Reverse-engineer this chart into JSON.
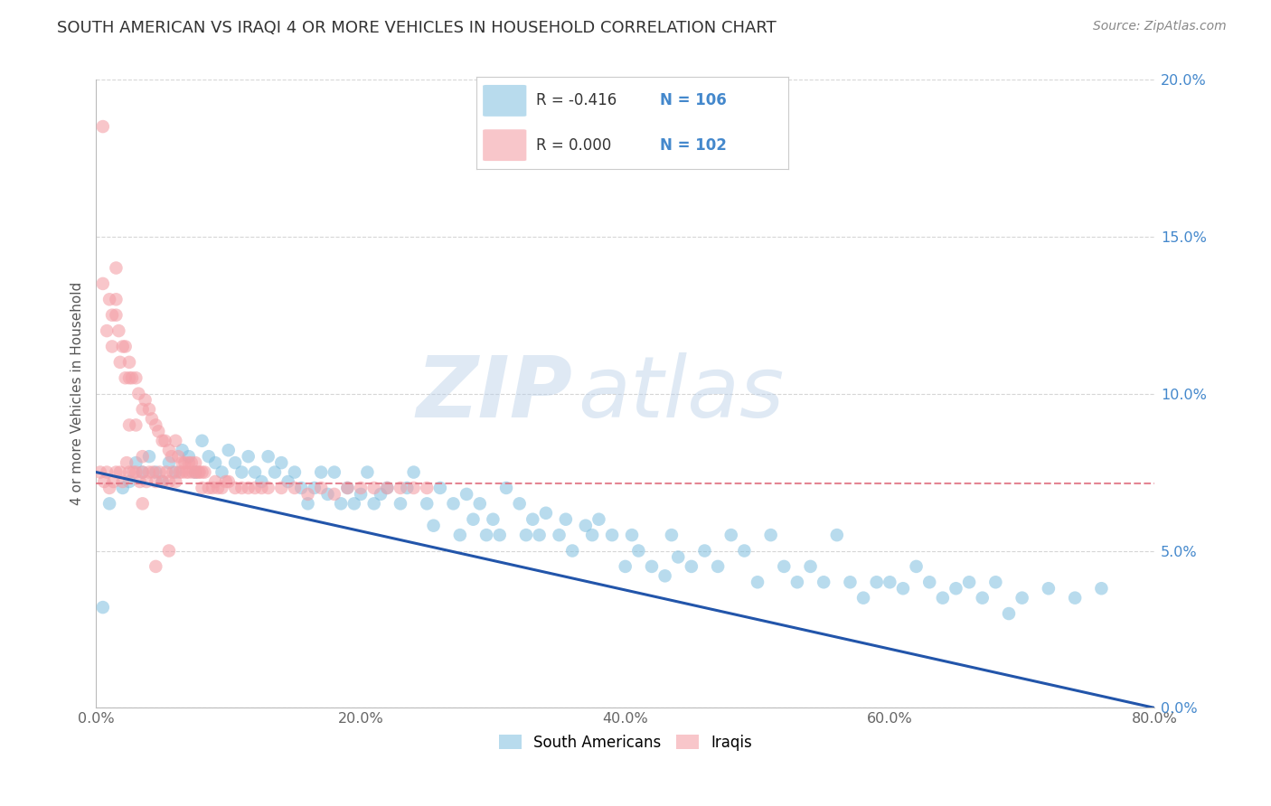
{
  "title": "SOUTH AMERICAN VS IRAQI 4 OR MORE VEHICLES IN HOUSEHOLD CORRELATION CHART",
  "source": "Source: ZipAtlas.com",
  "ylabel": "4 or more Vehicles in Household",
  "xlim": [
    0,
    0.8
  ],
  "ylim": [
    0,
    0.2
  ],
  "xticks": [
    0.0,
    0.2,
    0.4,
    0.6,
    0.8
  ],
  "yticks": [
    0.0,
    0.05,
    0.1,
    0.15,
    0.2
  ],
  "ytick_labels_right": [
    "0.0%",
    "5.0%",
    "10.0%",
    "15.0%",
    "20.0%"
  ],
  "xtick_labels": [
    "0.0%",
    "20.0%",
    "40.0%",
    "60.0%",
    "80.0%"
  ],
  "legend_blue_R": "R = -0.416",
  "legend_blue_N": "N = 106",
  "legend_pink_R": "R = 0.000",
  "legend_pink_N": "N = 102",
  "blue_color": "#7fbfdf",
  "pink_color": "#f4a0a8",
  "blue_line_color": "#2255aa",
  "pink_line_color": "#e07080",
  "watermark_zip": "ZIP",
  "watermark_atlas": "atlas",
  "blue_trend_start_y": 0.075,
  "blue_trend_end_y": 0.0,
  "pink_trend_y": 0.0715,
  "blue_scatter_x": [
    0.5,
    1.0,
    2.0,
    2.5,
    3.0,
    3.5,
    4.0,
    4.5,
    5.0,
    5.5,
    6.0,
    6.5,
    7.0,
    7.5,
    8.0,
    8.5,
    9.0,
    9.5,
    10.0,
    10.5,
    11.0,
    11.5,
    12.0,
    12.5,
    13.0,
    13.5,
    14.0,
    14.5,
    15.0,
    15.5,
    16.0,
    16.5,
    17.0,
    17.5,
    18.0,
    18.5,
    19.0,
    19.5,
    20.0,
    20.5,
    21.0,
    21.5,
    22.0,
    23.0,
    23.5,
    24.0,
    25.0,
    25.5,
    26.0,
    27.0,
    27.5,
    28.0,
    28.5,
    29.0,
    29.5,
    30.0,
    30.5,
    31.0,
    32.0,
    32.5,
    33.0,
    33.5,
    34.0,
    35.0,
    35.5,
    36.0,
    37.0,
    37.5,
    38.0,
    39.0,
    40.0,
    40.5,
    41.0,
    42.0,
    43.0,
    43.5,
    44.0,
    45.0,
    46.0,
    47.0,
    48.0,
    49.0,
    50.0,
    51.0,
    52.0,
    53.0,
    54.0,
    55.0,
    56.0,
    57.0,
    58.0,
    59.0,
    60.0,
    61.0,
    62.0,
    63.0,
    64.0,
    65.0,
    66.0,
    67.0,
    68.0,
    69.0,
    70.0,
    72.0,
    74.0,
    76.0
  ],
  "blue_scatter_y": [
    3.2,
    6.5,
    7.0,
    7.2,
    7.8,
    7.5,
    8.0,
    7.5,
    7.2,
    7.8,
    7.5,
    8.2,
    8.0,
    7.5,
    8.5,
    8.0,
    7.8,
    7.5,
    8.2,
    7.8,
    7.5,
    8.0,
    7.5,
    7.2,
    8.0,
    7.5,
    7.8,
    7.2,
    7.5,
    7.0,
    6.5,
    7.0,
    7.5,
    6.8,
    7.5,
    6.5,
    7.0,
    6.5,
    6.8,
    7.5,
    6.5,
    6.8,
    7.0,
    6.5,
    7.0,
    7.5,
    6.5,
    5.8,
    7.0,
    6.5,
    5.5,
    6.8,
    6.0,
    6.5,
    5.5,
    6.0,
    5.5,
    7.0,
    6.5,
    5.5,
    6.0,
    5.5,
    6.2,
    5.5,
    6.0,
    5.0,
    5.8,
    5.5,
    6.0,
    5.5,
    4.5,
    5.5,
    5.0,
    4.5,
    4.2,
    5.5,
    4.8,
    4.5,
    5.0,
    4.5,
    5.5,
    5.0,
    4.0,
    5.5,
    4.5,
    4.0,
    4.5,
    4.0,
    5.5,
    4.0,
    3.5,
    4.0,
    4.0,
    3.8,
    4.5,
    4.0,
    3.5,
    3.8,
    4.0,
    3.5,
    4.0,
    3.0,
    3.5,
    3.8,
    3.5,
    3.8
  ],
  "pink_scatter_x": [
    0.3,
    0.5,
    0.6,
    0.8,
    1.0,
    1.0,
    1.2,
    1.3,
    1.5,
    1.5,
    1.7,
    1.8,
    2.0,
    2.0,
    2.2,
    2.3,
    2.5,
    2.5,
    2.7,
    2.8,
    3.0,
    3.0,
    3.2,
    3.3,
    3.5,
    3.5,
    3.7,
    3.8,
    4.0,
    4.0,
    4.2,
    4.3,
    4.5,
    4.5,
    4.7,
    4.8,
    5.0,
    5.0,
    5.2,
    5.3,
    5.5,
    5.5,
    5.7,
    5.8,
    6.0,
    6.0,
    6.2,
    6.3,
    6.5,
    6.5,
    6.7,
    6.8,
    7.0,
    7.0,
    7.2,
    7.3,
    7.5,
    7.5,
    7.7,
    7.8,
    8.0,
    8.0,
    8.2,
    8.5,
    8.8,
    9.0,
    9.2,
    9.5,
    9.8,
    10.0,
    10.5,
    11.0,
    11.5,
    12.0,
    12.5,
    13.0,
    14.0,
    15.0,
    16.0,
    17.0,
    18.0,
    19.0,
    20.0,
    21.0,
    22.0,
    23.0,
    24.0,
    25.0,
    1.5,
    1.5,
    2.5,
    2.5,
    3.5,
    3.5,
    0.5,
    0.8,
    1.2,
    1.8,
    2.2,
    3.0,
    4.5,
    5.5
  ],
  "pink_scatter_y": [
    7.5,
    18.5,
    7.2,
    7.5,
    13.0,
    7.0,
    12.5,
    7.2,
    13.0,
    7.5,
    12.0,
    7.5,
    11.5,
    7.2,
    11.5,
    7.8,
    11.0,
    7.5,
    10.5,
    7.5,
    10.5,
    7.5,
    10.0,
    7.2,
    9.5,
    7.5,
    9.8,
    7.2,
    9.5,
    7.5,
    9.2,
    7.5,
    9.0,
    7.2,
    8.8,
    7.5,
    8.5,
    7.2,
    8.5,
    7.5,
    8.2,
    7.2,
    8.0,
    7.5,
    8.5,
    7.2,
    8.0,
    7.5,
    7.8,
    7.5,
    7.8,
    7.5,
    7.8,
    7.5,
    7.8,
    7.5,
    7.8,
    7.5,
    7.5,
    7.5,
    7.5,
    7.0,
    7.5,
    7.0,
    7.0,
    7.2,
    7.0,
    7.0,
    7.2,
    7.2,
    7.0,
    7.0,
    7.0,
    7.0,
    7.0,
    7.0,
    7.0,
    7.0,
    6.8,
    7.0,
    6.8,
    7.0,
    7.0,
    7.0,
    7.0,
    7.0,
    7.0,
    7.0,
    14.0,
    12.5,
    10.5,
    9.0,
    8.0,
    6.5,
    13.5,
    12.0,
    11.5,
    11.0,
    10.5,
    9.0,
    4.5,
    5.0
  ]
}
